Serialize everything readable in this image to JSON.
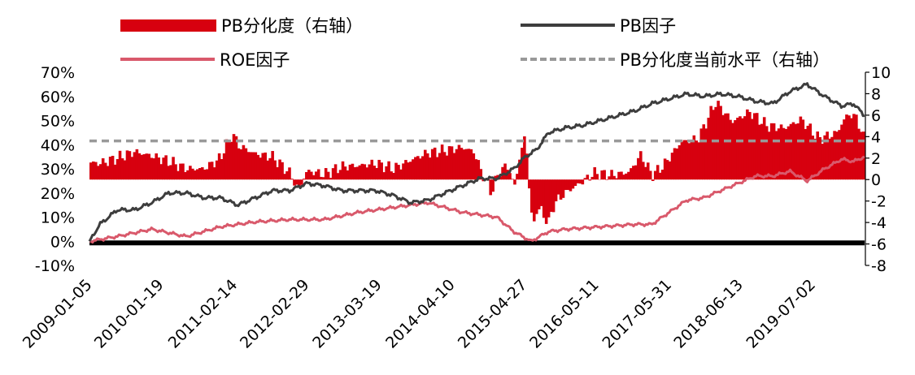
{
  "chart_data": {
    "type": "bar+line",
    "title": "",
    "legend": [
      {
        "key": "pb_dispersion",
        "label": "PB分化度（右轴）",
        "color": "#d7000f",
        "style": "bar"
      },
      {
        "key": "pb_factor",
        "label": "PB因子",
        "color": "#3d3d3d",
        "style": "line"
      },
      {
        "key": "roe_factor",
        "label": "ROE因子",
        "color": "#d9596b",
        "style": "line"
      },
      {
        "key": "current_level",
        "label": "PB分化度当前水平（右轴）",
        "color": "#999999",
        "style": "dashed"
      }
    ],
    "x_ticks": [
      "2009-01-05",
      "2010-01-19",
      "2011-02-14",
      "2012-02-29",
      "2013-03-19",
      "2014-04-10",
      "2015-04-27",
      "2016-05-11",
      "2017-05-31",
      "2018-06-13",
      "2019-07-02"
    ],
    "x_range": [
      "2009-01-05",
      "2020-03-31"
    ],
    "y_left": {
      "ticks": [
        "-10%",
        "0%",
        "10%",
        "20%",
        "30%",
        "40%",
        "50%",
        "60%",
        "70%"
      ],
      "min": -10,
      "max": 70,
      "unit": "%"
    },
    "y_right": {
      "ticks": [
        "-8",
        "-6",
        "-4",
        "-2",
        "0",
        "2",
        "4",
        "6",
        "8",
        "10"
      ],
      "min": -8,
      "max": 10
    },
    "current_level_value": 3.6,
    "series": [
      {
        "name": "PB分化度（右轴）",
        "axis": "right",
        "type": "bar",
        "points": [
          [
            "2009-01-05",
            1.6
          ],
          [
            "2009-03-01",
            1.5
          ],
          [
            "2009-06-01",
            2.0
          ],
          [
            "2009-09-01",
            2.6
          ],
          [
            "2009-12-01",
            2.2
          ],
          [
            "2010-03-01",
            1.7
          ],
          [
            "2010-06-01",
            1.0
          ],
          [
            "2010-09-01",
            1.0
          ],
          [
            "2010-12-01",
            2.0
          ],
          [
            "2010-12-20",
            3.0
          ],
          [
            "2011-01-15",
            3.6
          ],
          [
            "2011-02-01",
            4.4
          ],
          [
            "2011-03-01",
            3.2
          ],
          [
            "2011-06-01",
            2.4
          ],
          [
            "2011-09-01",
            2.1
          ],
          [
            "2011-12-01",
            0.6
          ],
          [
            "2012-01-15",
            -1.0
          ],
          [
            "2012-03-01",
            0.8
          ],
          [
            "2012-06-01",
            0.5
          ],
          [
            "2012-09-01",
            1.2
          ],
          [
            "2012-12-01",
            1.3
          ],
          [
            "2013-03-01",
            1.5
          ],
          [
            "2013-06-01",
            1.0
          ],
          [
            "2013-09-01",
            1.8
          ],
          [
            "2013-12-01",
            2.5
          ],
          [
            "2014-03-01",
            2.7
          ],
          [
            "2014-06-01",
            3.0
          ],
          [
            "2014-08-01",
            2.6
          ],
          [
            "2014-09-15",
            0.5
          ],
          [
            "2014-11-01",
            -1.2
          ],
          [
            "2014-12-15",
            0.8
          ],
          [
            "2015-02-01",
            1.3
          ],
          [
            "2015-03-01",
            -0.9
          ],
          [
            "2015-04-01",
            2.0
          ],
          [
            "2015-05-01",
            4.3
          ],
          [
            "2015-06-01",
            -3.2
          ],
          [
            "2015-06-15",
            -4.2
          ],
          [
            "2015-07-01",
            -2.5
          ],
          [
            "2015-08-01",
            -3.2
          ],
          [
            "2015-09-01",
            -4.0
          ],
          [
            "2015-10-01",
            -2.2
          ],
          [
            "2015-12-01",
            -1.2
          ],
          [
            "2016-02-01",
            -0.5
          ],
          [
            "2016-05-01",
            0.6
          ],
          [
            "2016-08-01",
            0.4
          ],
          [
            "2016-11-01",
            0.7
          ],
          [
            "2017-01-01",
            2.3
          ],
          [
            "2017-03-01",
            0.4
          ],
          [
            "2017-05-01",
            1.3
          ],
          [
            "2017-08-01",
            3.5
          ],
          [
            "2017-11-01",
            3.8
          ],
          [
            "2018-02-01",
            7.2
          ],
          [
            "2018-05-01",
            5.4
          ],
          [
            "2018-08-01",
            6.3
          ],
          [
            "2018-11-01",
            5.0
          ],
          [
            "2019-02-01",
            4.8
          ],
          [
            "2019-05-01",
            5.6
          ],
          [
            "2019-08-01",
            3.8
          ],
          [
            "2019-11-01",
            4.3
          ],
          [
            "2020-01-01",
            6.1
          ],
          [
            "2020-02-15",
            5.8
          ],
          [
            "2020-03-31",
            3.6
          ]
        ]
      },
      {
        "name": "PB因子",
        "axis": "left",
        "type": "line",
        "points": [
          [
            "2009-01-05",
            0
          ],
          [
            "2009-03-01",
            7
          ],
          [
            "2009-06-01",
            13
          ],
          [
            "2009-09-01",
            13
          ],
          [
            "2009-12-01",
            16
          ],
          [
            "2010-03-01",
            20
          ],
          [
            "2010-06-01",
            20
          ],
          [
            "2010-09-01",
            18
          ],
          [
            "2010-12-01",
            18
          ],
          [
            "2011-03-01",
            15
          ],
          [
            "2011-06-01",
            18
          ],
          [
            "2011-09-01",
            21
          ],
          [
            "2011-12-01",
            21
          ],
          [
            "2012-03-01",
            24
          ],
          [
            "2012-06-01",
            23
          ],
          [
            "2012-09-01",
            21
          ],
          [
            "2012-12-01",
            21
          ],
          [
            "2013-03-01",
            21
          ],
          [
            "2013-06-01",
            19
          ],
          [
            "2013-09-01",
            16
          ],
          [
            "2013-12-01",
            17
          ],
          [
            "2014-03-01",
            20
          ],
          [
            "2014-06-01",
            23
          ],
          [
            "2014-09-01",
            26
          ],
          [
            "2014-12-01",
            26
          ],
          [
            "2015-03-01",
            30
          ],
          [
            "2015-05-01",
            35
          ],
          [
            "2015-07-01",
            38
          ],
          [
            "2015-09-01",
            45
          ],
          [
            "2015-12-01",
            47
          ],
          [
            "2016-03-01",
            48
          ],
          [
            "2016-06-01",
            50
          ],
          [
            "2016-09-01",
            52
          ],
          [
            "2016-12-01",
            54
          ],
          [
            "2017-03-01",
            57
          ],
          [
            "2017-06-01",
            59
          ],
          [
            "2017-09-01",
            61
          ],
          [
            "2017-12-01",
            60
          ],
          [
            "2018-03-01",
            61
          ],
          [
            "2018-06-01",
            60
          ],
          [
            "2018-09-01",
            58
          ],
          [
            "2018-12-01",
            57
          ],
          [
            "2019-03-01",
            62
          ],
          [
            "2019-06-01",
            65
          ],
          [
            "2019-09-01",
            60
          ],
          [
            "2019-12-01",
            56
          ],
          [
            "2020-02-01",
            57
          ],
          [
            "2020-03-31",
            52
          ]
        ]
      },
      {
        "name": "ROE因子",
        "axis": "left",
        "type": "line",
        "points": [
          [
            "2009-01-05",
            0
          ],
          [
            "2009-06-01",
            2
          ],
          [
            "2009-12-01",
            5
          ],
          [
            "2010-06-01",
            2
          ],
          [
            "2010-12-01",
            6
          ],
          [
            "2011-06-01",
            8
          ],
          [
            "2011-12-01",
            9
          ],
          [
            "2012-06-01",
            9
          ],
          [
            "2012-12-01",
            12
          ],
          [
            "2013-06-01",
            14
          ],
          [
            "2013-12-01",
            16
          ],
          [
            "2014-06-01",
            12
          ],
          [
            "2014-12-01",
            10
          ],
          [
            "2015-03-01",
            4
          ],
          [
            "2015-06-01",
            0
          ],
          [
            "2015-09-01",
            4
          ],
          [
            "2015-12-01",
            5
          ],
          [
            "2016-06-01",
            6
          ],
          [
            "2016-12-01",
            7
          ],
          [
            "2017-03-01",
            7
          ],
          [
            "2017-06-01",
            12
          ],
          [
            "2017-09-01",
            17
          ],
          [
            "2017-12-01",
            18
          ],
          [
            "2018-03-01",
            21
          ],
          [
            "2018-06-01",
            24
          ],
          [
            "2018-09-01",
            27
          ],
          [
            "2018-12-01",
            27
          ],
          [
            "2019-03-01",
            29
          ],
          [
            "2019-06-01",
            25
          ],
          [
            "2019-09-01",
            30
          ],
          [
            "2019-12-01",
            34
          ],
          [
            "2020-02-01",
            33
          ],
          [
            "2020-03-31",
            35
          ]
        ]
      }
    ]
  }
}
